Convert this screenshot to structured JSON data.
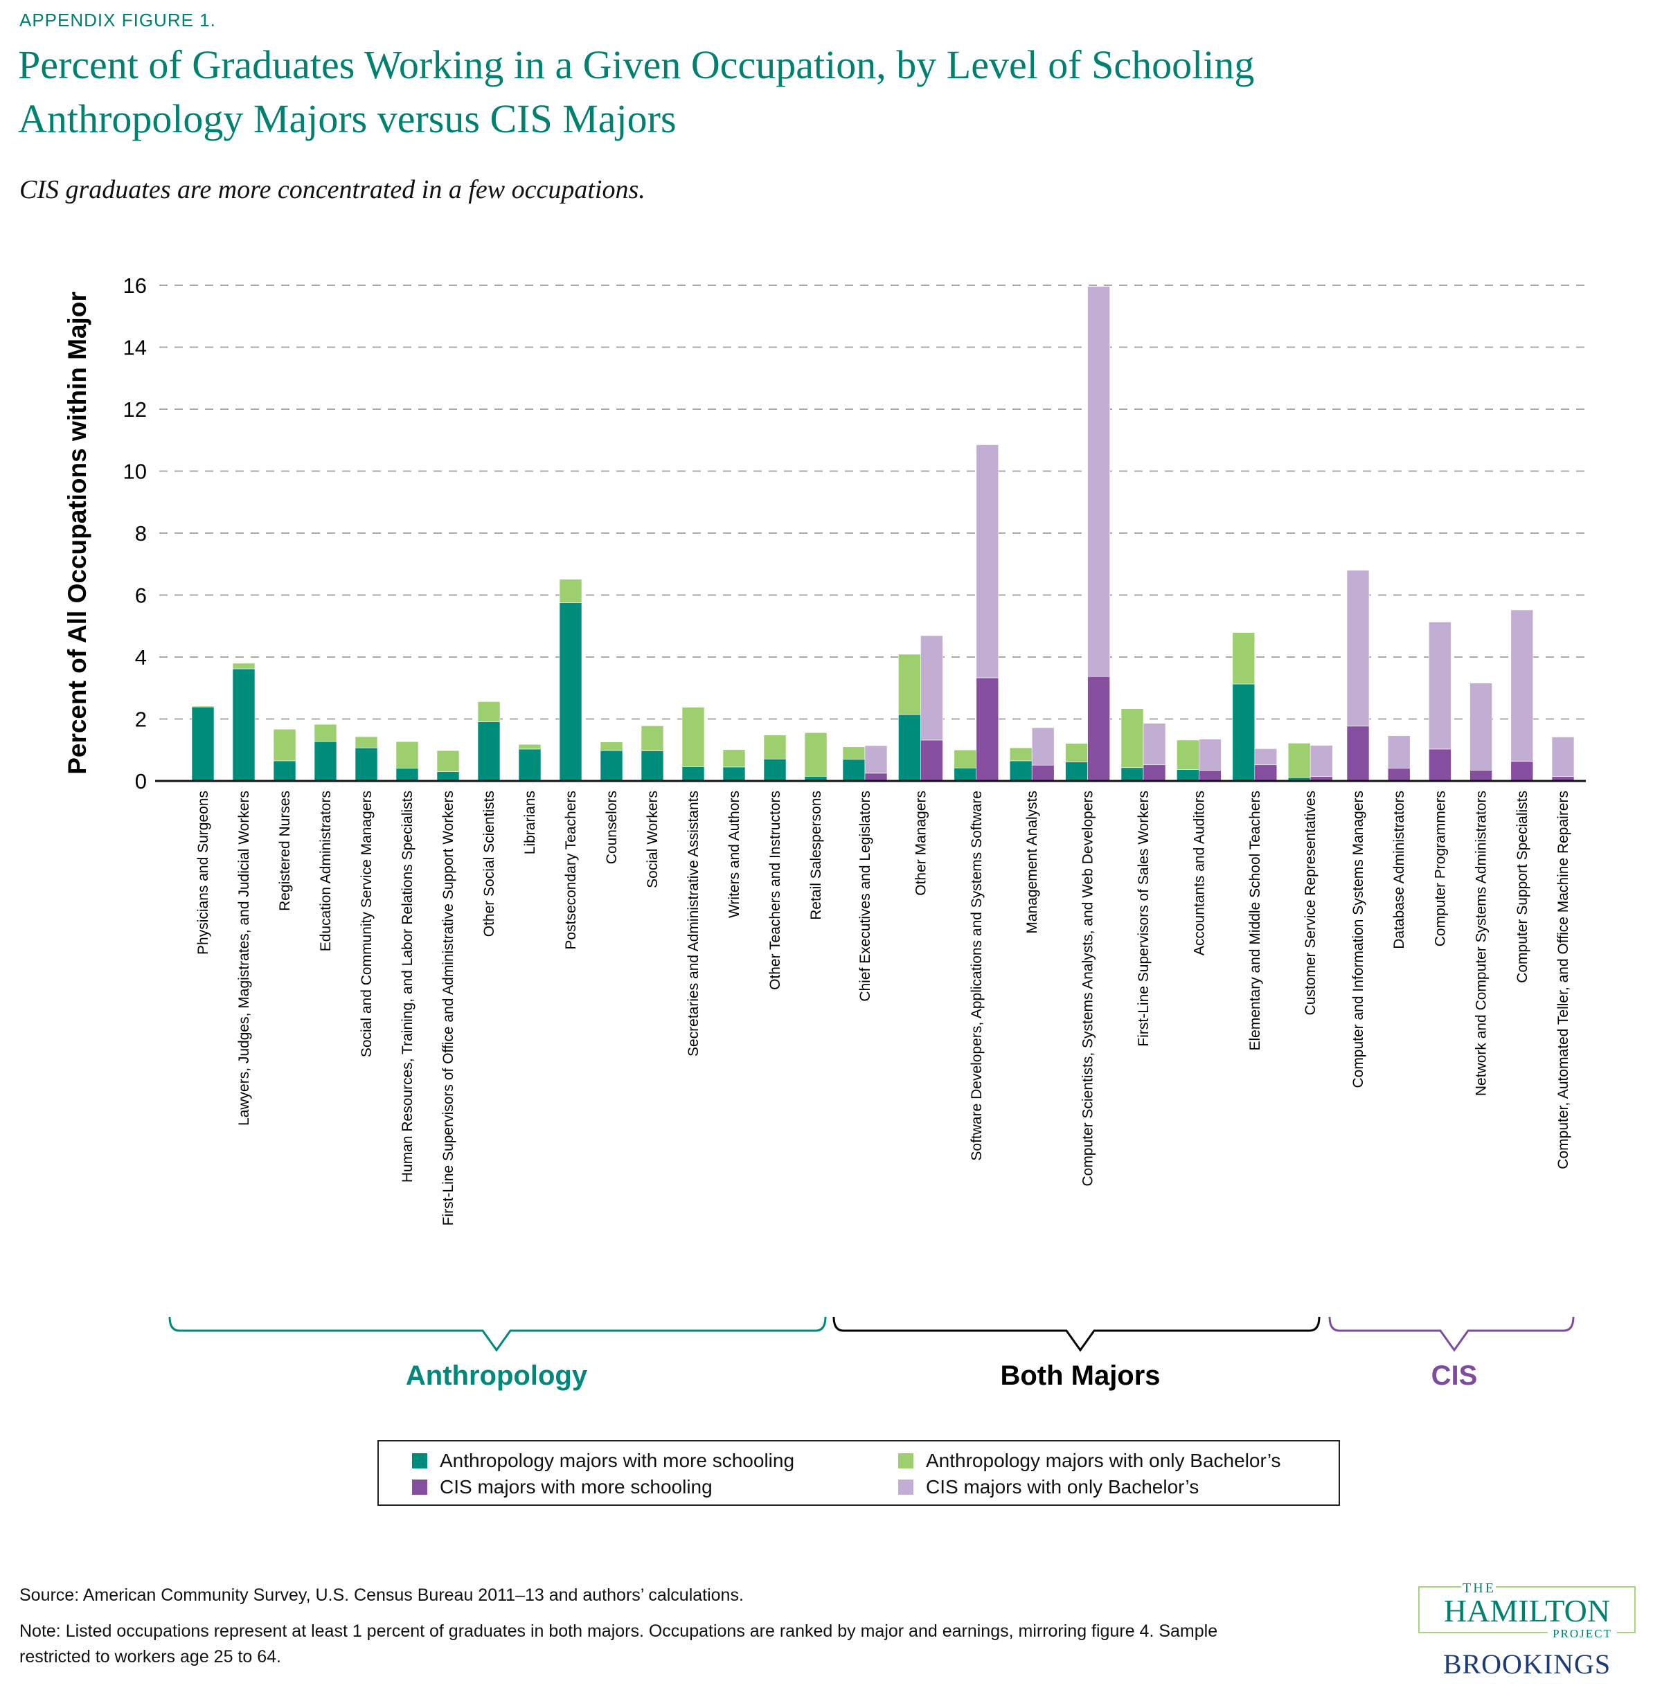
{
  "figure_label": "APPENDIX FIGURE 1.",
  "title_line1": "Percent of Graduates Working in a Given Occupation, by Level of Schooling",
  "title_line2": "Anthropology Majors versus CIS Majors",
  "subtitle": "CIS graduates are more concentrated in a few occupations.",
  "colors": {
    "anthro_more": "#008C7A",
    "anthro_ba": "#9DCF6F",
    "cis_more": "#864E9E",
    "cis_ba": "#C3AED3",
    "title": "#00806F"
  },
  "chart_data": {
    "type": "bar",
    "stacked": true,
    "ylabel": "Percent of All Occupations within Major",
    "ylim": [
      0,
      16
    ],
    "yticks": [
      "0",
      "2",
      "4",
      "6",
      "8",
      "10",
      "12",
      "14",
      "16"
    ],
    "grid": true,
    "legend_placement": "bottom",
    "series_names": [
      "Anthropology majors with more schooling",
      "Anthropology majors with only Bachelor’s",
      "CIS  majors with more schooling",
      "CIS majors with only Bachelor’s"
    ],
    "groups": [
      {
        "label": "Anthropology",
        "color": "#00897B"
      },
      {
        "label": "Both Majors",
        "color": "#000000"
      },
      {
        "label": "CIS",
        "color": "#7E4C9E"
      }
    ],
    "categories": [
      {
        "label": "Physicians and Surgeons",
        "group": 0,
        "anthro": [
          2.39,
          0.03
        ]
      },
      {
        "label": "Lawyers, Judges, Magistrates, and Judicial Workers",
        "group": 0,
        "anthro": [
          3.62,
          0.18
        ]
      },
      {
        "label": "Registered Nurses",
        "group": 0,
        "anthro": [
          0.65,
          1.02
        ]
      },
      {
        "label": "Education Administrators",
        "group": 0,
        "anthro": [
          1.27,
          0.56
        ]
      },
      {
        "label": "Social and Community Service Managers",
        "group": 0,
        "anthro": [
          1.07,
          0.36
        ]
      },
      {
        "label": "Human Resources, Training, and Labor Relations Specialists",
        "group": 0,
        "anthro": [
          0.41,
          0.86
        ]
      },
      {
        "label": "First-Line Supervisors of Office and Administrative Support Workers",
        "group": 0,
        "anthro": [
          0.3,
          0.68
        ]
      },
      {
        "label": "Other Social Scientists",
        "group": 0,
        "anthro": [
          1.91,
          0.65
        ]
      },
      {
        "label": "Librarians",
        "group": 0,
        "anthro": [
          1.03,
          0.15
        ]
      },
      {
        "label": "Postsecondary Teachers",
        "group": 0,
        "anthro": [
          5.75,
          0.76
        ]
      },
      {
        "label": "Counselors",
        "group": 0,
        "anthro": [
          0.98,
          0.28
        ]
      },
      {
        "label": "Social Workers",
        "group": 0,
        "anthro": [
          0.97,
          0.81
        ]
      },
      {
        "label": "Secretaries and Administrative Assistants",
        "group": 0,
        "anthro": [
          0.46,
          1.92
        ]
      },
      {
        "label": "Writers and Authors",
        "group": 0,
        "anthro": [
          0.45,
          0.56
        ]
      },
      {
        "label": "Other Teachers and Instructors",
        "group": 0,
        "anthro": [
          0.71,
          0.77
        ]
      },
      {
        "label": "Retail Salespersons",
        "group": 0,
        "anthro": [
          0.15,
          1.41
        ]
      },
      {
        "label": "Chief Executives and Legislators",
        "group": 1,
        "anthro": [
          0.7,
          0.4
        ],
        "cis": [
          0.25,
          0.89
        ]
      },
      {
        "label": "Other Managers",
        "group": 1,
        "anthro": [
          2.14,
          1.95
        ],
        "cis": [
          1.32,
          3.37
        ]
      },
      {
        "label": "Software Developers, Applications and Systems Software",
        "group": 1,
        "anthro": [
          0.42,
          0.58
        ],
        "cis": [
          3.33,
          7.52
        ]
      },
      {
        "label": "Management Analysts",
        "group": 1,
        "anthro": [
          0.65,
          0.42
        ],
        "cis": [
          0.51,
          1.21
        ]
      },
      {
        "label": "Computer Scientists, Systems Analysts, and Web Developers",
        "group": 1,
        "anthro": [
          0.61,
          0.6
        ],
        "cis": [
          3.37,
          12.59
        ]
      },
      {
        "label": "First-Line Supervisors of Sales Workers",
        "group": 1,
        "anthro": [
          0.43,
          1.9
        ],
        "cis": [
          0.52,
          1.34
        ]
      },
      {
        "label": "Accountants and Auditors",
        "group": 1,
        "anthro": [
          0.37,
          0.95
        ],
        "cis": [
          0.34,
          1.01
        ]
      },
      {
        "label": "Elementary and Middle School Teachers",
        "group": 1,
        "anthro": [
          3.13,
          1.66
        ],
        "cis": [
          0.52,
          0.52
        ]
      },
      {
        "label": "Customer Service Representatives",
        "group": 1,
        "anthro": [
          0.11,
          1.11
        ],
        "cis": [
          0.14,
          1.01
        ]
      },
      {
        "label": "Computer and Information Systems Managers",
        "group": 2,
        "cis": [
          1.77,
          5.03
        ]
      },
      {
        "label": "Database Administrators",
        "group": 2,
        "cis": [
          0.41,
          1.05
        ]
      },
      {
        "label": "Computer Programmers",
        "group": 2,
        "cis": [
          1.03,
          4.1
        ]
      },
      {
        "label": "Network and Computer Systems Administrators",
        "group": 2,
        "cis": [
          0.35,
          2.81
        ]
      },
      {
        "label": "Computer Support Specialists",
        "group": 2,
        "cis": [
          0.63,
          4.89
        ]
      },
      {
        "label": "Computer, Automated Teller, and Office Machine Repairers",
        "group": 2,
        "cis": [
          0.14,
          1.28
        ]
      }
    ]
  },
  "footer": {
    "source": "Source: American Community Survey, U.S. Census Bureau 2011–13 and authors’ calculations.",
    "note_line1": "Note: Listed occupations represent at least 1 percent of graduates in both majors. Occupations are ranked by major and earnings, mirroring figure 4. Sample",
    "note_line2": "restricted to workers age 25 to 64."
  },
  "logo": {
    "the": "THE",
    "hamilton": "HAMILTON",
    "project": "PROJECT",
    "brookings": "BROOKINGS"
  }
}
